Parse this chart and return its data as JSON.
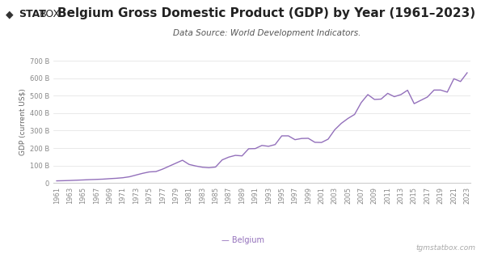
{
  "title": "Belgium Gross Domestic Product (GDP) by Year (1961–2023)",
  "subtitle": "Data Source: World Development Indicators.",
  "ylabel": "GDP (current US$)",
  "legend_label": "— Belgium",
  "footer": "tgmstatbox.com",
  "line_color": "#9370BB",
  "background_color": "#ffffff",
  "years": [
    1961,
    1962,
    1963,
    1964,
    1965,
    1966,
    1967,
    1968,
    1969,
    1970,
    1971,
    1972,
    1973,
    1974,
    1975,
    1976,
    1977,
    1978,
    1979,
    1980,
    1981,
    1982,
    1983,
    1984,
    1985,
    1986,
    1987,
    1988,
    1989,
    1990,
    1991,
    1992,
    1993,
    1994,
    1995,
    1996,
    1997,
    1998,
    1999,
    2000,
    2001,
    2002,
    2003,
    2004,
    2005,
    2006,
    2007,
    2008,
    2009,
    2010,
    2011,
    2012,
    2013,
    2014,
    2015,
    2016,
    2017,
    2018,
    2019,
    2020,
    2021,
    2022,
    2023
  ],
  "gdp_billions": [
    11.7,
    12.6,
    13.8,
    15.4,
    16.9,
    18.6,
    20.0,
    21.5,
    24.2,
    26.4,
    29.6,
    35.2,
    45.2,
    55.0,
    63.0,
    65.0,
    79.0,
    96.0,
    113.0,
    130.0,
    106.0,
    97.0,
    90.0,
    87.0,
    91.0,
    132.0,
    148.0,
    158.0,
    155.0,
    196.0,
    197.0,
    215.0,
    210.0,
    220.0,
    270.0,
    270.0,
    248.0,
    255.0,
    256.0,
    233.0,
    232.0,
    251.0,
    305.0,
    342.0,
    370.0,
    393.0,
    461.0,
    507.0,
    479.0,
    481.0,
    514.0,
    495.0,
    507.0,
    532.0,
    455.0,
    474.0,
    493.0,
    533.0,
    533.0,
    521.0,
    598.0,
    582.0,
    632.0
  ],
  "ylim": [
    0,
    700
  ],
  "yticks": [
    0,
    100,
    200,
    300,
    400,
    500,
    600,
    700
  ],
  "title_fontsize": 11,
  "subtitle_fontsize": 7.5,
  "axis_label_fontsize": 6.5,
  "tick_fontsize": 6,
  "logo_diamond_color": "#222222",
  "logo_stat_color": "#222222",
  "logo_box_color": "#222222",
  "grid_color": "#e0e0e0",
  "tick_color": "#888888",
  "spine_color": "#cccccc"
}
